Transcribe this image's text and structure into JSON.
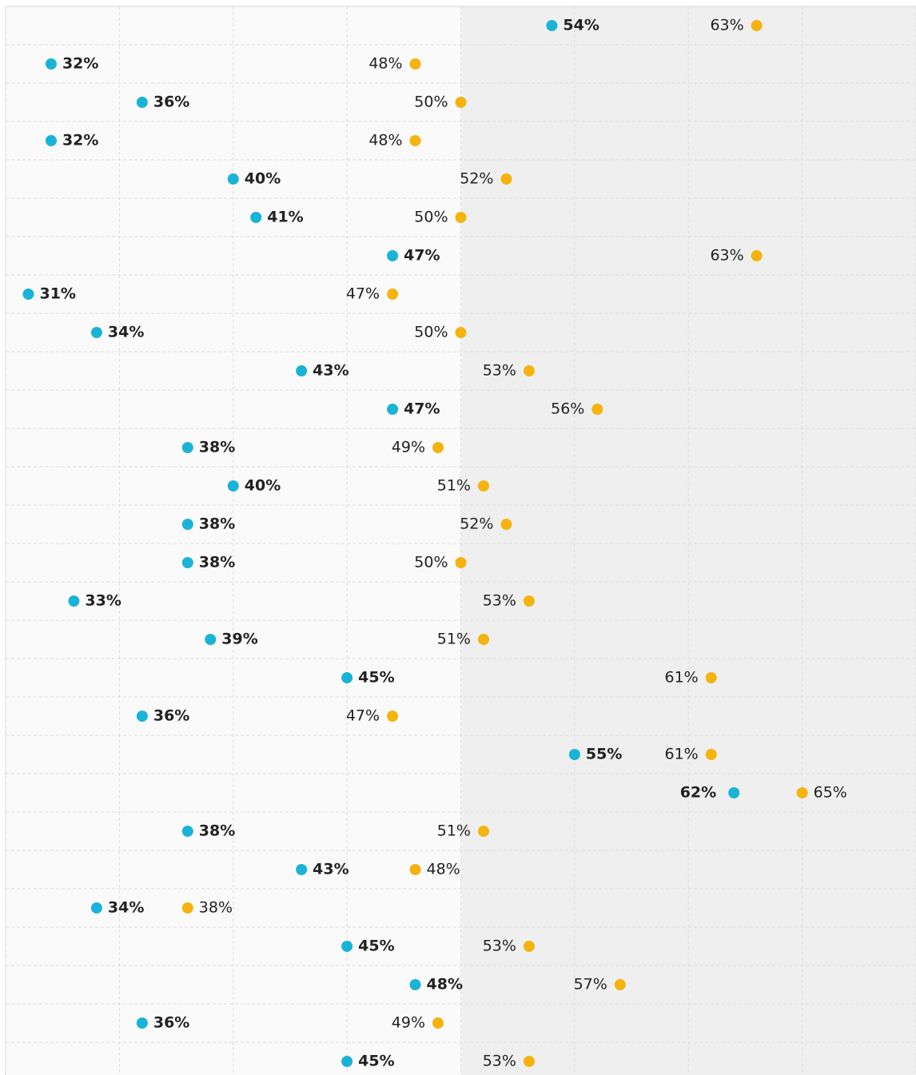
{
  "chart_data": {
    "type": "dot",
    "categories": [
      null,
      null,
      null,
      null,
      null,
      null,
      null,
      null,
      null,
      null,
      null,
      null,
      null,
      null,
      null,
      null,
      null,
      null,
      null,
      null,
      null,
      null,
      null,
      null,
      null,
      null,
      null,
      null
    ],
    "series": [
      {
        "color": "#1ab3d8",
        "values": [
          54,
          32,
          36,
          32,
          40,
          41,
          47,
          31,
          34,
          43,
          47,
          38,
          40,
          38,
          38,
          33,
          39,
          45,
          36,
          55,
          62,
          38,
          43,
          34,
          45,
          48,
          36,
          45
        ],
        "value_labels": [
          "54%",
          "32%",
          "36%",
          "32%",
          "40%",
          "41%",
          "47%",
          "31%",
          "34%",
          "43%",
          "47%",
          "38%",
          "40%",
          "38%",
          "38%",
          "33%",
          "39%",
          "45%",
          "36%",
          "55%",
          "62%",
          "38%",
          "43%",
          "34%",
          "45%",
          "48%",
          "36%",
          "45%"
        ]
      },
      {
        "color": "#f5b30f",
        "values": [
          63,
          48,
          50,
          48,
          52,
          50,
          63,
          47,
          50,
          53,
          56,
          49,
          51,
          52,
          50,
          53,
          51,
          61,
          47,
          61,
          65,
          51,
          48,
          38,
          53,
          57,
          49,
          53
        ],
        "value_labels": [
          "63%",
          "48%",
          "50%",
          "48%",
          "52%",
          "50%",
          "63%",
          "47%",
          "50%",
          "53%",
          "56%",
          "49%",
          "51%",
          "52%",
          "50%",
          "53%",
          "51%",
          "61%",
          "47%",
          "61%",
          "65%",
          "51%",
          "48%",
          "38%",
          "53%",
          "57%",
          "49%",
          "53%"
        ]
      }
    ],
    "xlim": [
      30,
      70
    ],
    "xticks": [
      30,
      35,
      40,
      45,
      50,
      55,
      60,
      65,
      70
    ],
    "grid": true,
    "shaded_region": [
      50,
      70
    ]
  }
}
